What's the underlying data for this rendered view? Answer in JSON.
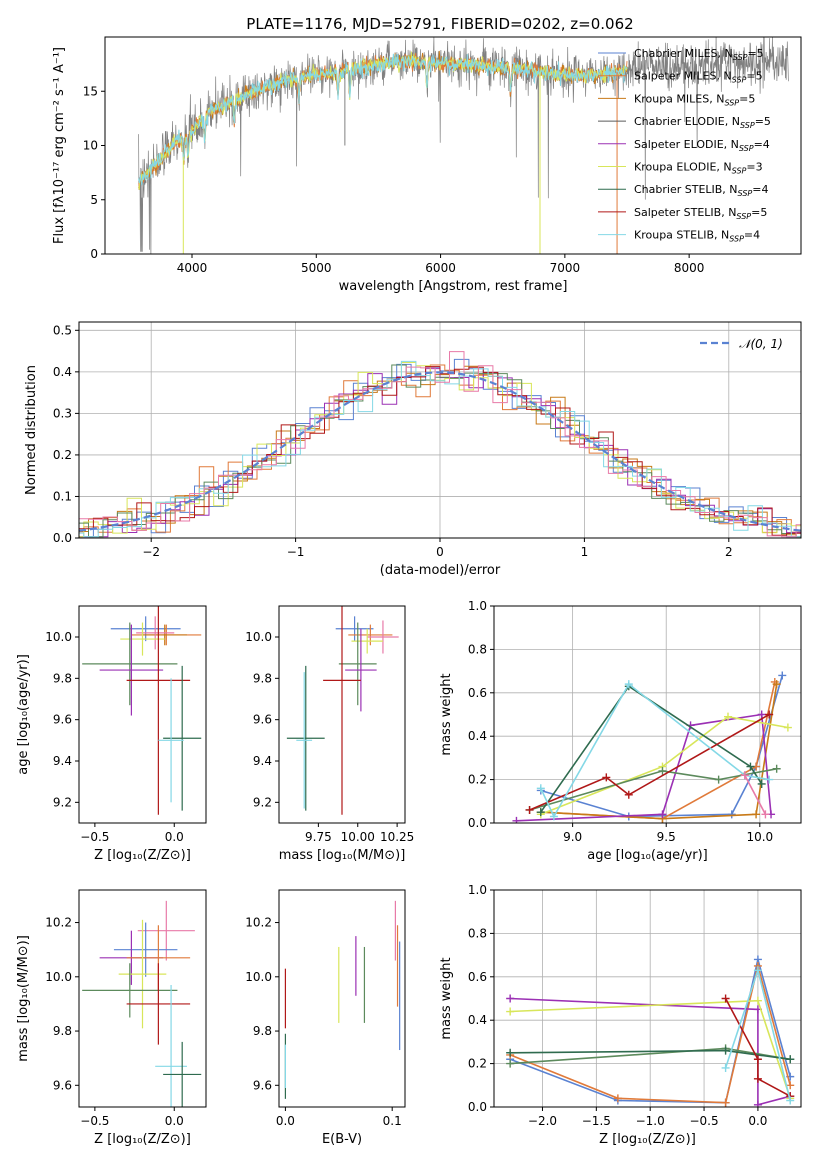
{
  "figure": {
    "title": "PLATE=1176, MJD=52791, FIBERID=0202, z=0.062"
  },
  "colors": {
    "Chabrier MILES": "#5a82d2",
    "Salpeter MILES": "#e07a3a",
    "Kroupa MILES": "#c87a18",
    "Chabrier ELODIE": "#5a5a5a",
    "Salpeter ELODIE": "#9b30b4",
    "Kroupa ELODIE": "#d8e65a",
    "Chabrier STELIB": "#2f6b4f",
    "Salpeter STELIB": "#b01818",
    "Kroupa STELIB": "#84d8e6",
    "pink": "#e87aa8",
    "green2": "#5c8a5c",
    "data": "#808080",
    "gaussian": "#5a82d2"
  },
  "chart_data": [
    {
      "type": "line",
      "name": "spectrum",
      "xlabel": "wavelength [Angstrom, rest frame]",
      "ylabel": "Flux [fλ10⁻¹⁷ erg cm⁻² s⁻¹ A⁻¹]",
      "xlim": [
        3300,
        8900
      ],
      "ylim": [
        0,
        20
      ],
      "xticks": [
        4000,
        5000,
        6000,
        7000,
        8000
      ],
      "yticks": [
        0,
        5,
        10,
        15
      ],
      "continuum_x": [
        3570,
        3650,
        3750,
        3850,
        3950,
        4050,
        4150,
        4300,
        4500,
        4700,
        4900,
        5100,
        5300,
        5500,
        5700,
        5900,
        6100,
        6300,
        6500,
        6700,
        6900,
        7100,
        7300,
        7500,
        7700,
        7900,
        8100,
        8300,
        8500,
        8700,
        8800
      ],
      "continuum_y": [
        6.5,
        7.5,
        8.8,
        10.2,
        10.8,
        12.0,
        13.2,
        13.9,
        15.0,
        15.8,
        16.4,
        16.6,
        17.0,
        17.5,
        17.8,
        17.6,
        17.5,
        17.3,
        17.2,
        17.0,
        16.6,
        16.4,
        16.5,
        17.0,
        17.4,
        17.2,
        17.5,
        17.8,
        17.6,
        17.8,
        17.4
      ],
      "legend": [
        {
          "label": "Chabrier MILES, N",
          "sub": "SSP",
          "tail": "=5",
          "color": "Chabrier MILES"
        },
        {
          "label": "Salpeter MILES, N",
          "sub": "SSP",
          "tail": "=5",
          "color": "Salpeter MILES"
        },
        {
          "label": "Kroupa MILES, N",
          "sub": "SSP",
          "tail": "=5",
          "color": "Kroupa MILES"
        },
        {
          "label": "Chabrier ELODIE, N",
          "sub": "SSP",
          "tail": "=5",
          "color": "Chabrier ELODIE"
        },
        {
          "label": "Salpeter ELODIE, N",
          "sub": "SSP",
          "tail": "=4",
          "color": "Salpeter ELODIE"
        },
        {
          "label": "Kroupa ELODIE, N",
          "sub": "SSP",
          "tail": "=3",
          "color": "Kroupa ELODIE"
        },
        {
          "label": "Chabrier STELIB, N",
          "sub": "SSP",
          "tail": "=4",
          "color": "Chabrier STELIB"
        },
        {
          "label": "Salpeter STELIB, N",
          "sub": "SSP",
          "tail": "=5",
          "color": "Salpeter STELIB"
        },
        {
          "label": "Kroupa STELIB, N",
          "sub": "SSP",
          "tail": "=4",
          "color": "Kroupa STELIB"
        }
      ]
    },
    {
      "type": "bar",
      "name": "residual histogram",
      "xlabel": "(data-model)/error",
      "ylabel": "Normed distribution",
      "xlim": [
        -2.5,
        2.5
      ],
      "ylim": [
        0,
        0.52
      ],
      "xticks": [
        -2,
        -1,
        0,
        1,
        2
      ],
      "yticks": [
        0.0,
        0.1,
        0.2,
        0.3,
        0.4,
        0.5
      ],
      "grid": true,
      "legend_label": "𝒩(0, 1)",
      "legend_position": "upper right"
    },
    {
      "type": "scatter",
      "name": "age vs Z",
      "xlabel": "Z [log₁₀(Z/Z⊙)]",
      "ylabel": "age  [log₁₀(age/yr)]",
      "xlim": [
        -0.6,
        0.2
      ],
      "ylim": [
        9.1,
        10.15
      ],
      "xticks": [
        -0.5,
        0.0
      ],
      "yticks": [
        9.2,
        9.4,
        9.6,
        9.8,
        10.0
      ],
      "points": [
        {
          "c": "Chabrier MILES",
          "x": -0.18,
          "xe": 0.22,
          "y": 10.04,
          "ye": 0.06
        },
        {
          "c": "Salpeter MILES",
          "x": -0.05,
          "xe": 0.22,
          "y": 10.01,
          "ye": 0.05
        },
        {
          "c": "Kroupa MILES",
          "x": -0.06,
          "xe": 0.14,
          "y": 10.01,
          "ye": 0.05
        },
        {
          "c": "pink",
          "x": -0.12,
          "xe": 0.12,
          "y": 10.02,
          "ye": 0.08
        },
        {
          "c": "Kroupa ELODIE",
          "x": -0.2,
          "xe": 0.14,
          "y": 9.99,
          "ye": 0.08
        },
        {
          "c": "green2",
          "x": -0.28,
          "xe": 0.3,
          "y": 9.87,
          "ye": 0.2
        },
        {
          "c": "Salpeter ELODIE",
          "x": -0.27,
          "xe": 0.2,
          "y": 9.84,
          "ye": 0.22
        },
        {
          "c": "Salpeter STELIB",
          "x": -0.1,
          "xe": 0.2,
          "y": 9.79,
          "ye": 0.65
        },
        {
          "c": "Chabrier STELIB",
          "x": 0.05,
          "xe": 0.12,
          "y": 9.51,
          "ye": 0.35
        },
        {
          "c": "Kroupa STELIB",
          "x": -0.02,
          "xe": 0.08,
          "y": 9.5,
          "ye": 0.3
        }
      ]
    },
    {
      "type": "scatter",
      "name": "age vs mass",
      "xlabel": "mass [log₁₀(M/M⊙)]",
      "ylabel": "",
      "xlim": [
        9.5,
        10.3
      ],
      "ylim": [
        9.1,
        10.15
      ],
      "xticks": [
        9.75,
        10.0,
        10.25
      ],
      "xticklabels": [
        "9.75",
        "10.00",
        "10.25"
      ],
      "yticks": [
        9.2,
        9.4,
        9.6,
        9.8,
        10.0
      ],
      "points": [
        {
          "c": "Chabrier MILES",
          "x": 9.98,
          "xe": 0.12,
          "y": 10.04,
          "ye": 0.06
        },
        {
          "c": "Salpeter MILES",
          "x": 10.08,
          "xe": 0.14,
          "y": 10.01,
          "ye": 0.05
        },
        {
          "c": "pink",
          "x": 10.16,
          "xe": 0.1,
          "y": 10.0,
          "ye": 0.08
        },
        {
          "c": "Kroupa ELODIE",
          "x": 10.06,
          "xe": 0.1,
          "y": 9.98,
          "ye": 0.06
        },
        {
          "c": "green2",
          "x": 10.0,
          "xe": 0.12,
          "y": 9.87,
          "ye": 0.2
        },
        {
          "c": "Salpeter ELODIE",
          "x": 10.02,
          "xe": 0.1,
          "y": 9.84,
          "ye": 0.2
        },
        {
          "c": "Salpeter STELIB",
          "x": 9.9,
          "xe": 0.12,
          "y": 9.79,
          "ye": 0.65
        },
        {
          "c": "Chabrier STELIB",
          "x": 9.67,
          "xe": 0.12,
          "y": 9.51,
          "ye": 0.35
        },
        {
          "c": "Kroupa STELIB",
          "x": 9.66,
          "xe": 0.05,
          "y": 9.5,
          "ye": 0.33
        }
      ]
    },
    {
      "type": "line",
      "name": "mass weight vs age",
      "xlabel": "age  [log₁₀(age/yr)]",
      "ylabel": "mass weight",
      "xlim": [
        8.58,
        10.22
      ],
      "ylim": [
        0,
        1
      ],
      "xticks": [
        9.0,
        9.5,
        10.0
      ],
      "yticks": [
        0.0,
        0.2,
        0.4,
        0.6,
        0.8,
        1.0
      ],
      "grid": true,
      "series": [
        {
          "c": "Chabrier MILES",
          "x": [
            8.83,
            9.3,
            9.85,
            9.98,
            10.12
          ],
          "y": [
            0.15,
            0.03,
            0.04,
            0.26,
            0.68
          ]
        },
        {
          "c": "Salpeter MILES",
          "x": [
            8.83,
            9.48,
            9.98,
            10.08
          ],
          "y": [
            0.05,
            0.02,
            0.26,
            0.65
          ]
        },
        {
          "c": "Kroupa MILES",
          "x": [
            8.83,
            9.48,
            9.98,
            10.09
          ],
          "y": [
            0.05,
            0.02,
            0.04,
            0.64
          ]
        },
        {
          "c": "Salpeter ELODIE",
          "x": [
            8.7,
            9.48,
            9.63,
            10.01,
            10.06
          ],
          "y": [
            0.01,
            0.04,
            0.45,
            0.5,
            0.04
          ]
        },
        {
          "c": "Kroupa ELODIE",
          "x": [
            8.83,
            9.48,
            9.83,
            10.15
          ],
          "y": [
            0.04,
            0.26,
            0.49,
            0.44
          ]
        },
        {
          "c": "green2",
          "x": [
            8.77,
            9.48,
            9.78,
            10.09
          ],
          "y": [
            0.06,
            0.24,
            0.2,
            0.25
          ]
        },
        {
          "c": "Chabrier STELIB",
          "x": [
            8.83,
            9.3,
            9.95,
            10.01
          ],
          "y": [
            0.05,
            0.63,
            0.26,
            0.18
          ]
        },
        {
          "c": "Salpeter STELIB",
          "x": [
            8.77,
            9.18,
            9.3,
            10.05
          ],
          "y": [
            0.06,
            0.21,
            0.13,
            0.5
          ]
        },
        {
          "c": "Kroupa STELIB",
          "x": [
            8.83,
            8.9,
            9.3,
            9.92,
            10.05
          ],
          "y": [
            0.16,
            0.03,
            0.64,
            0.22,
            0.2
          ]
        },
        {
          "c": "pink",
          "x": [
            9.92,
            10.03
          ],
          "y": [
            0.22,
            0.04
          ]
        }
      ]
    },
    {
      "type": "scatter",
      "name": "mass vs Z",
      "xlabel": "Z [log₁₀(Z/Z⊙)]",
      "ylabel": "mass [log₁₀(M/M⊙)]",
      "xlim": [
        -0.6,
        0.2
      ],
      "ylim": [
        9.52,
        10.32
      ],
      "xticks": [
        -0.5,
        0.0
      ],
      "yticks": [
        9.6,
        9.8,
        10.0,
        10.2
      ],
      "points": [
        {
          "c": "pink",
          "x": -0.05,
          "xe": 0.18,
          "y": 10.17,
          "ye": 0.11
        },
        {
          "c": "Chabrier MILES",
          "x": -0.18,
          "xe": 0.2,
          "y": 10.1,
          "ye": 0.1
        },
        {
          "c": "Salpeter ELODIE",
          "x": -0.27,
          "xe": 0.2,
          "y": 10.07,
          "ye": 0.1
        },
        {
          "c": "Salpeter MILES",
          "x": -0.1,
          "xe": 0.2,
          "y": 10.07,
          "ye": 0.12
        },
        {
          "c": "Kroupa ELODIE",
          "x": -0.2,
          "xe": 0.15,
          "y": 10.01,
          "ye": 0.2
        },
        {
          "c": "green2",
          "x": -0.28,
          "xe": 0.3,
          "y": 9.95,
          "ye": 0.1
        },
        {
          "c": "Salpeter STELIB",
          "x": -0.1,
          "xe": 0.2,
          "y": 9.9,
          "ye": 0.15
        },
        {
          "c": "Kroupa STELIB",
          "x": -0.02,
          "xe": 0.1,
          "y": 9.67,
          "ye": 0.3
        },
        {
          "c": "Chabrier STELIB",
          "x": 0.05,
          "xe": 0.12,
          "y": 9.64,
          "ye": 0.12
        }
      ]
    },
    {
      "type": "scatter",
      "name": "mass vs E(B-V)",
      "xlabel": "E(B-V)",
      "ylabel": "",
      "xlim": [
        -0.006,
        0.112
      ],
      "ylim": [
        9.52,
        10.32
      ],
      "xticks": [
        0.0,
        0.1
      ],
      "yticks": [
        9.6,
        9.8,
        10.0,
        10.2
      ],
      "points": [
        {
          "c": "Salpeter STELIB",
          "x": 0.0,
          "y": 9.92,
          "ye": 0.11
        },
        {
          "c": "Chabrier STELIB",
          "x": 0.0,
          "y": 9.67,
          "ye": 0.12
        },
        {
          "c": "Kroupa STELIB",
          "x": 0.0,
          "y": 9.67,
          "ye": 0.08
        },
        {
          "c": "Kroupa ELODIE",
          "x": 0.05,
          "y": 9.97,
          "ye": 0.14
        },
        {
          "c": "Salpeter ELODIE",
          "x": 0.066,
          "y": 10.04,
          "ye": 0.11
        },
        {
          "c": "green2",
          "x": 0.074,
          "y": 9.97,
          "ye": 0.14
        },
        {
          "c": "pink",
          "x": 0.103,
          "y": 10.17,
          "ye": 0.11
        },
        {
          "c": "Salpeter MILES",
          "x": 0.105,
          "y": 10.04,
          "ye": 0.15
        },
        {
          "c": "Chabrier MILES",
          "x": 0.107,
          "y": 9.93,
          "ye": 0.2
        }
      ]
    },
    {
      "type": "line",
      "name": "mass weight vs Z",
      "xlabel": "Z [log₁₀(Z/Z⊙)]",
      "ylabel": "mass weight",
      "xlim": [
        -2.45,
        0.4
      ],
      "ylim": [
        0,
        1
      ],
      "xticks": [
        -2.0,
        -1.5,
        -1.0,
        -0.5,
        0.0
      ],
      "yticks": [
        0.0,
        0.2,
        0.4,
        0.6,
        0.8,
        1.0
      ],
      "grid": true,
      "series": [
        {
          "c": "Chabrier MILES",
          "x": [
            -2.3,
            -1.3,
            -0.3,
            0.0,
            0.3
          ],
          "y": [
            0.22,
            0.03,
            0.02,
            0.68,
            0.14
          ]
        },
        {
          "c": "Salpeter MILES",
          "x": [
            -2.3,
            -1.3,
            -0.3,
            0.0,
            0.3
          ],
          "y": [
            0.24,
            0.04,
            0.02,
            0.65,
            0.1
          ]
        },
        {
          "c": "Salpeter ELODIE",
          "x": [
            -2.3,
            0.0,
            0.0,
            0.3
          ],
          "y": [
            0.5,
            0.45,
            0.01,
            0.05
          ]
        },
        {
          "c": "Kroupa ELODIE",
          "x": [
            -2.3,
            0.0,
            0.3
          ],
          "y": [
            0.44,
            0.49,
            0.04
          ]
        },
        {
          "c": "green2",
          "x": [
            -2.3,
            -0.3,
            0.3
          ],
          "y": [
            0.2,
            0.27,
            0.22
          ]
        },
        {
          "c": "Chabrier STELIB",
          "x": [
            -2.3,
            -0.3,
            0.3
          ],
          "y": [
            0.25,
            0.26,
            0.22
          ]
        },
        {
          "c": "Salpeter STELIB",
          "x": [
            -0.3,
            0.0,
            0.0,
            0.3
          ],
          "y": [
            0.5,
            0.22,
            0.13,
            0.05
          ]
        },
        {
          "c": "Kroupa STELIB",
          "x": [
            -0.3,
            0.0,
            0.3
          ],
          "y": [
            0.18,
            0.63,
            0.03
          ]
        }
      ]
    }
  ]
}
